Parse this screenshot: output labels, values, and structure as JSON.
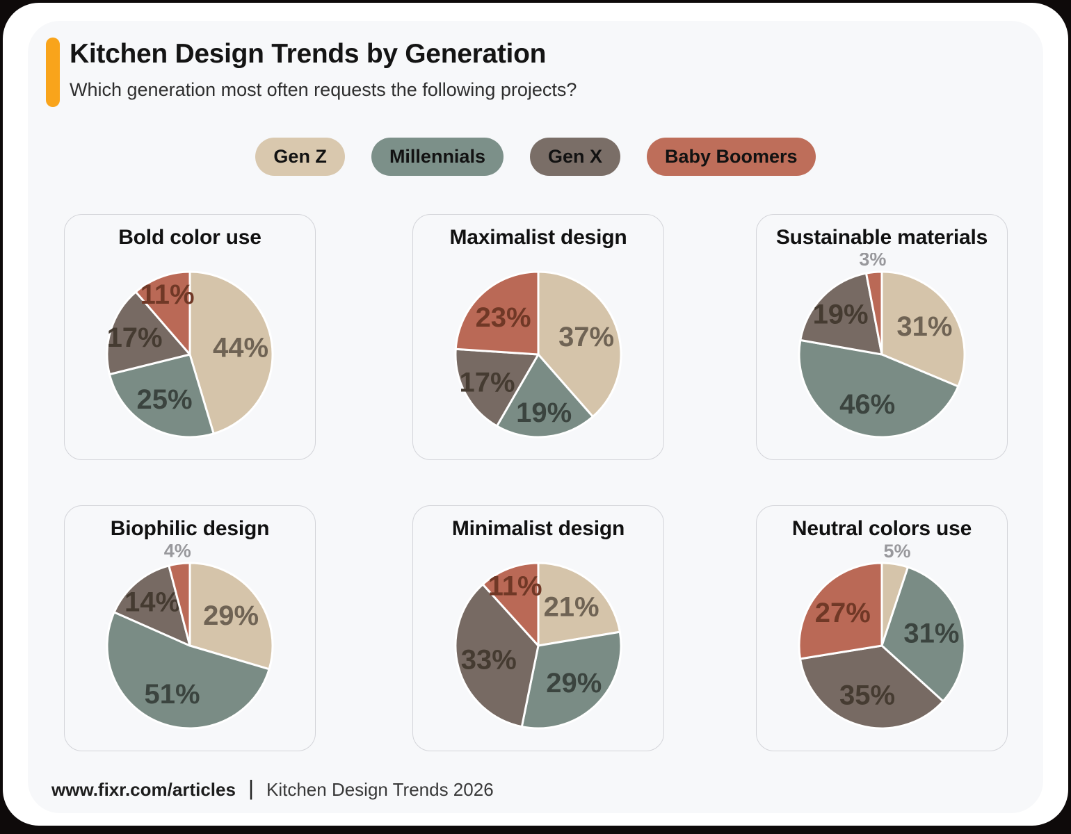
{
  "page": {
    "title": "Kitchen Design Trends by Generation",
    "subtitle": "Which generation most often requests the following projects?",
    "accent_color": "#F9A41B"
  },
  "legend": [
    {
      "label": "Gen Z",
      "color": "#D9C8AE"
    },
    {
      "label": "Millennials",
      "color": "#7C9089"
    },
    {
      "label": "Gen X",
      "color": "#7A6E67"
    },
    {
      "label": "Baby Boomers",
      "color": "#BE6E5A"
    }
  ],
  "palette": {
    "slice_fills": [
      "#D5C4AA",
      "#7A8C85",
      "#776A63",
      "#BA6956"
    ],
    "label_colors": [
      "#6F6354",
      "#3B443F",
      "#453B31",
      "#703826"
    ],
    "outside_label_color": "#98989C",
    "slice_stroke": "#FFFFFF"
  },
  "chart_data": [
    {
      "type": "pie",
      "title": "Bold color use",
      "unit": "%",
      "categories": [
        "Gen Z",
        "Millennials",
        "Gen X",
        "Baby Boomers"
      ],
      "values": [
        44,
        25,
        17,
        11
      ],
      "labels": [
        "44%",
        "25%",
        "17%",
        "11%"
      ]
    },
    {
      "type": "pie",
      "title": "Maximalist design",
      "unit": "%",
      "categories": [
        "Gen Z",
        "Millennials",
        "Gen X",
        "Baby Boomers"
      ],
      "values": [
        37,
        19,
        17,
        23
      ],
      "labels": [
        "37%",
        "19%",
        "17%",
        "23%"
      ]
    },
    {
      "type": "pie",
      "title": "Sustainable materials",
      "unit": "%",
      "categories": [
        "Gen Z",
        "Millennials",
        "Gen X",
        "Baby Boomers"
      ],
      "values": [
        31,
        46,
        19,
        3
      ],
      "labels": [
        "31%",
        "46%",
        "19%",
        "3%"
      ]
    },
    {
      "type": "pie",
      "title": "Biophilic design",
      "unit": "%",
      "categories": [
        "Gen Z",
        "Millennials",
        "Gen X",
        "Baby Boomers"
      ],
      "values": [
        29,
        51,
        14,
        4
      ],
      "labels": [
        "29%",
        "51%",
        "14%",
        "4%"
      ]
    },
    {
      "type": "pie",
      "title": "Minimalist design",
      "unit": "%",
      "categories": [
        "Gen Z",
        "Millennials",
        "Gen X",
        "Baby Boomers"
      ],
      "values": [
        21,
        29,
        33,
        11
      ],
      "labels": [
        "21%",
        "29%",
        "33%",
        "11%"
      ]
    },
    {
      "type": "pie",
      "title": "Neutral colors use",
      "unit": "%",
      "categories": [
        "Gen Z",
        "Millennials",
        "Gen X",
        "Baby Boomers"
      ],
      "values": [
        5,
        31,
        35,
        27
      ],
      "labels": [
        "5%",
        "31%",
        "35%",
        "27%"
      ]
    }
  ],
  "footer": {
    "site": "www.fixr.com/articles",
    "separator": "|",
    "caption": "Kitchen Design Trends 2026"
  }
}
